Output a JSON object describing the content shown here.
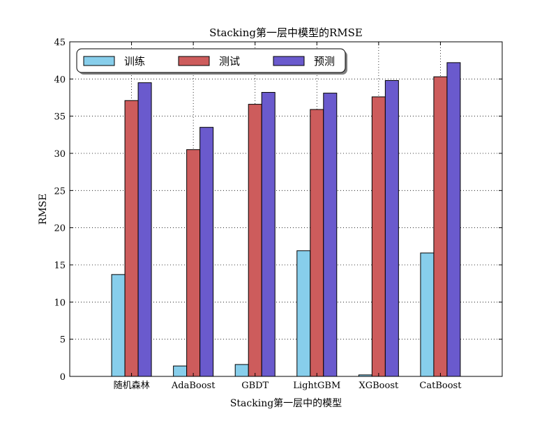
{
  "chart_data": {
    "type": "bar",
    "title": "Stacking第一层中模型的RMSE",
    "xlabel": "Stacking第一层中的模型",
    "ylabel": "RMSE",
    "categories": [
      "随机森林",
      "AdaBoost",
      "GBDT",
      "LightGBM",
      "XGBoost",
      "CatBoost"
    ],
    "series": [
      {
        "name": "训练",
        "color": "#87ceeb",
        "values": [
          13.7,
          1.4,
          1.6,
          16.9,
          0.2,
          16.6
        ]
      },
      {
        "name": "测试",
        "color": "#cd5c5c",
        "values": [
          37.1,
          30.5,
          36.6,
          35.9,
          37.6,
          40.3
        ]
      },
      {
        "name": "预测",
        "color": "#6a5acd",
        "values": [
          39.5,
          33.5,
          38.2,
          38.1,
          39.8,
          42.2
        ]
      }
    ],
    "ylim": [
      0,
      45
    ],
    "yticks": [
      0,
      5,
      10,
      15,
      20,
      25,
      30,
      35,
      40,
      45
    ],
    "grid": true,
    "legend_position": "top-left"
  }
}
